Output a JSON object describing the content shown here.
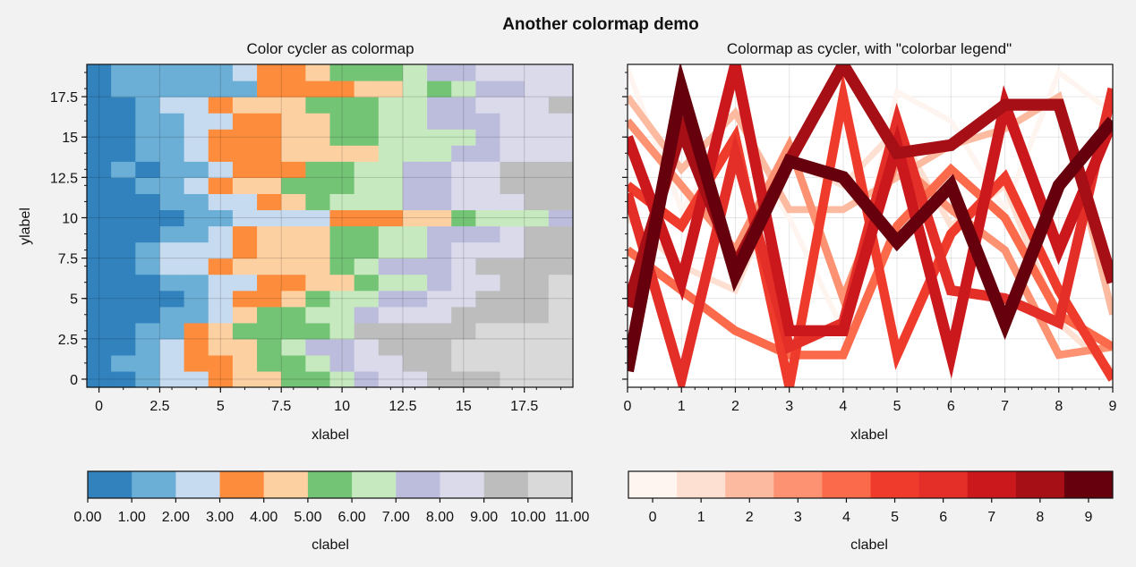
{
  "figure": {
    "suptitle": "Another colormap demo",
    "background": "#f2f2f2"
  },
  "chart_data": [
    {
      "type": "heatmap",
      "title": "Color cycler as colormap",
      "xlabel": "xlabel",
      "ylabel": "ylabel",
      "xlim": [
        -0.5,
        19.5
      ],
      "ylim": [
        -0.5,
        19.5
      ],
      "xticks": [
        "0",
        "2.5",
        "5",
        "7.5",
        "10",
        "12.5",
        "15",
        "17.5"
      ],
      "yticks": [
        "0",
        "2.5",
        "5",
        "7.5",
        "10",
        "12.5",
        "15",
        "17.5"
      ],
      "grid": true,
      "colors": [
        "#3182bd",
        "#6baed6",
        "#c6dbef",
        "#fd8d3c",
        "#fdd0a2",
        "#74c476",
        "#c7e9c0",
        "#bcbddc",
        "#dadaeb",
        "#bdbdbd",
        "#d9d9d9"
      ],
      "z_rows_bottom_to_top": [
        [
          0,
          0,
          1,
          2,
          2,
          3,
          4,
          4,
          5,
          5,
          6,
          7,
          8,
          8,
          9,
          9,
          9,
          10,
          10,
          10
        ],
        [
          0,
          1,
          1,
          2,
          3,
          3,
          4,
          5,
          5,
          6,
          7,
          8,
          8,
          9,
          9,
          10,
          10,
          10,
          10,
          10
        ],
        [
          0,
          0,
          1,
          2,
          3,
          4,
          4,
          5,
          6,
          7,
          7,
          8,
          9,
          9,
          9,
          10,
          10,
          10,
          10,
          10
        ],
        [
          0,
          0,
          1,
          1,
          3,
          4,
          5,
          5,
          5,
          5,
          6,
          9,
          9,
          9,
          9,
          9,
          10,
          10,
          10,
          10
        ],
        [
          0,
          0,
          0,
          1,
          1,
          2,
          4,
          5,
          5,
          6,
          6,
          7,
          8,
          8,
          8,
          9,
          9,
          9,
          9,
          10
        ],
        [
          0,
          0,
          0,
          0,
          1,
          2,
          3,
          3,
          4,
          5,
          6,
          6,
          7,
          7,
          8,
          8,
          9,
          9,
          9,
          10
        ],
        [
          0,
          0,
          0,
          1,
          1,
          2,
          2,
          3,
          3,
          4,
          4,
          5,
          6,
          6,
          7,
          8,
          8,
          9,
          9,
          10
        ],
        [
          0,
          0,
          1,
          2,
          2,
          3,
          4,
          4,
          4,
          4,
          5,
          6,
          7,
          7,
          7,
          8,
          9,
          9,
          9,
          9
        ],
        [
          0,
          0,
          1,
          2,
          2,
          2,
          3,
          4,
          4,
          4,
          5,
          5,
          6,
          6,
          7,
          8,
          8,
          8,
          9,
          9
        ],
        [
          0,
          0,
          0,
          1,
          1,
          2,
          3,
          4,
          4,
          4,
          5,
          5,
          6,
          6,
          7,
          7,
          7,
          8,
          9,
          9
        ],
        [
          0,
          0,
          0,
          0,
          1,
          1,
          2,
          2,
          2,
          2,
          3,
          3,
          3,
          4,
          4,
          5,
          6,
          6,
          6,
          7
        ],
        [
          0,
          0,
          0,
          1,
          1,
          2,
          2,
          3,
          4,
          5,
          6,
          6,
          6,
          7,
          7,
          8,
          8,
          8,
          9,
          9
        ],
        [
          0,
          0,
          1,
          1,
          2,
          3,
          4,
          4,
          5,
          5,
          5,
          6,
          6,
          7,
          7,
          8,
          8,
          9,
          9,
          9
        ],
        [
          0,
          1,
          0,
          1,
          1,
          2,
          3,
          3,
          3,
          5,
          5,
          6,
          6,
          7,
          7,
          8,
          8,
          9,
          9,
          9
        ],
        [
          0,
          0,
          1,
          1,
          2,
          3,
          3,
          3,
          4,
          4,
          4,
          4,
          6,
          6,
          6,
          7,
          7,
          8,
          8,
          8
        ],
        [
          0,
          0,
          1,
          1,
          2,
          3,
          3,
          3,
          4,
          4,
          5,
          5,
          6,
          6,
          6,
          6,
          7,
          8,
          8,
          8
        ],
        [
          0,
          0,
          1,
          1,
          2,
          2,
          3,
          3,
          4,
          4,
          5,
          5,
          6,
          6,
          7,
          7,
          7,
          8,
          8,
          8
        ],
        [
          0,
          0,
          1,
          2,
          2,
          3,
          4,
          4,
          4,
          5,
          5,
          5,
          6,
          6,
          7,
          7,
          8,
          8,
          8,
          9
        ],
        [
          0,
          1,
          1,
          1,
          1,
          1,
          1,
          3,
          3,
          3,
          3,
          4,
          4,
          6,
          5,
          6,
          7,
          7,
          8,
          8
        ],
        [
          0,
          1,
          1,
          1,
          1,
          1,
          2,
          3,
          3,
          4,
          5,
          5,
          5,
          6,
          7,
          7,
          8,
          8,
          8,
          8
        ]
      ],
      "colorbar": {
        "label": "clabel",
        "ticks": [
          "0.00",
          "1.00",
          "2.00",
          "3.00",
          "4.00",
          "5.00",
          "6.00",
          "7.00",
          "8.00",
          "9.00",
          "10.00",
          "11.00"
        ]
      }
    },
    {
      "type": "line",
      "title": "Colormap as cycler, with \"colorbar legend\"",
      "xlabel": "xlabel",
      "xlim": [
        0,
        9
      ],
      "xticks": [
        "0",
        "1",
        "2",
        "3",
        "4",
        "5",
        "6",
        "7",
        "8",
        "9"
      ],
      "grid": true,
      "x": [
        0,
        1,
        2,
        3,
        4,
        5,
        6,
        7,
        8,
        9
      ],
      "series": [
        {
          "color": "#fff5f0",
          "values": [
            19.2,
            10.5,
            15.0,
            10.0,
            3.0,
            17.8,
            16.0,
            10.5,
            19.0,
            16.5
          ]
        },
        {
          "color": "#fee0d2",
          "values": [
            10.0,
            7.0,
            5.5,
            13.5,
            12.0,
            15.5,
            9.5,
            12.0,
            3.5,
            0.5
          ]
        },
        {
          "color": "#fcbba1",
          "values": [
            17.5,
            13.0,
            16.5,
            10.5,
            10.5,
            12.5,
            14.5,
            15.5,
            17.5,
            4.0
          ]
        },
        {
          "color": "#fc9272",
          "values": [
            16.0,
            12.0,
            8.0,
            14.5,
            5.0,
            13.5,
            10.5,
            8.0,
            1.5,
            2.0
          ]
        },
        {
          "color": "#fb6a4a",
          "values": [
            8.0,
            5.5,
            3.0,
            1.5,
            1.5,
            9.5,
            13.0,
            10.0,
            4.0,
            2.0
          ]
        },
        {
          "color": "#ef3b2c",
          "values": [
            12.0,
            9.5,
            15.0,
            -0.5,
            17.5,
            1.5,
            9.0,
            12.5,
            5.5,
            0.0
          ]
        },
        {
          "color": "#e32f27",
          "values": [
            11.5,
            0.0,
            14.0,
            2.0,
            3.5,
            16.0,
            5.5,
            5.0,
            3.5,
            18.0
          ]
        },
        {
          "color": "#cb181d",
          "values": [
            15.0,
            6.0,
            19.5,
            3.0,
            3.0,
            14.5,
            1.5,
            17.0,
            8.0,
            16.0
          ]
        },
        {
          "color": "#a50f15",
          "values": [
            4.5,
            15.5,
            7.0,
            13.5,
            19.5,
            14.0,
            14.5,
            17.0,
            17.0,
            6.0
          ]
        },
        {
          "color": "#67000d",
          "values": [
            0.5,
            18.0,
            6.5,
            13.5,
            12.5,
            8.5,
            12.0,
            3.5,
            12.0,
            16.0
          ]
        }
      ],
      "colorbar": {
        "label": "clabel",
        "ticks": [
          "0",
          "1",
          "2",
          "3",
          "4",
          "5",
          "6",
          "7",
          "8",
          "9"
        ]
      }
    }
  ]
}
